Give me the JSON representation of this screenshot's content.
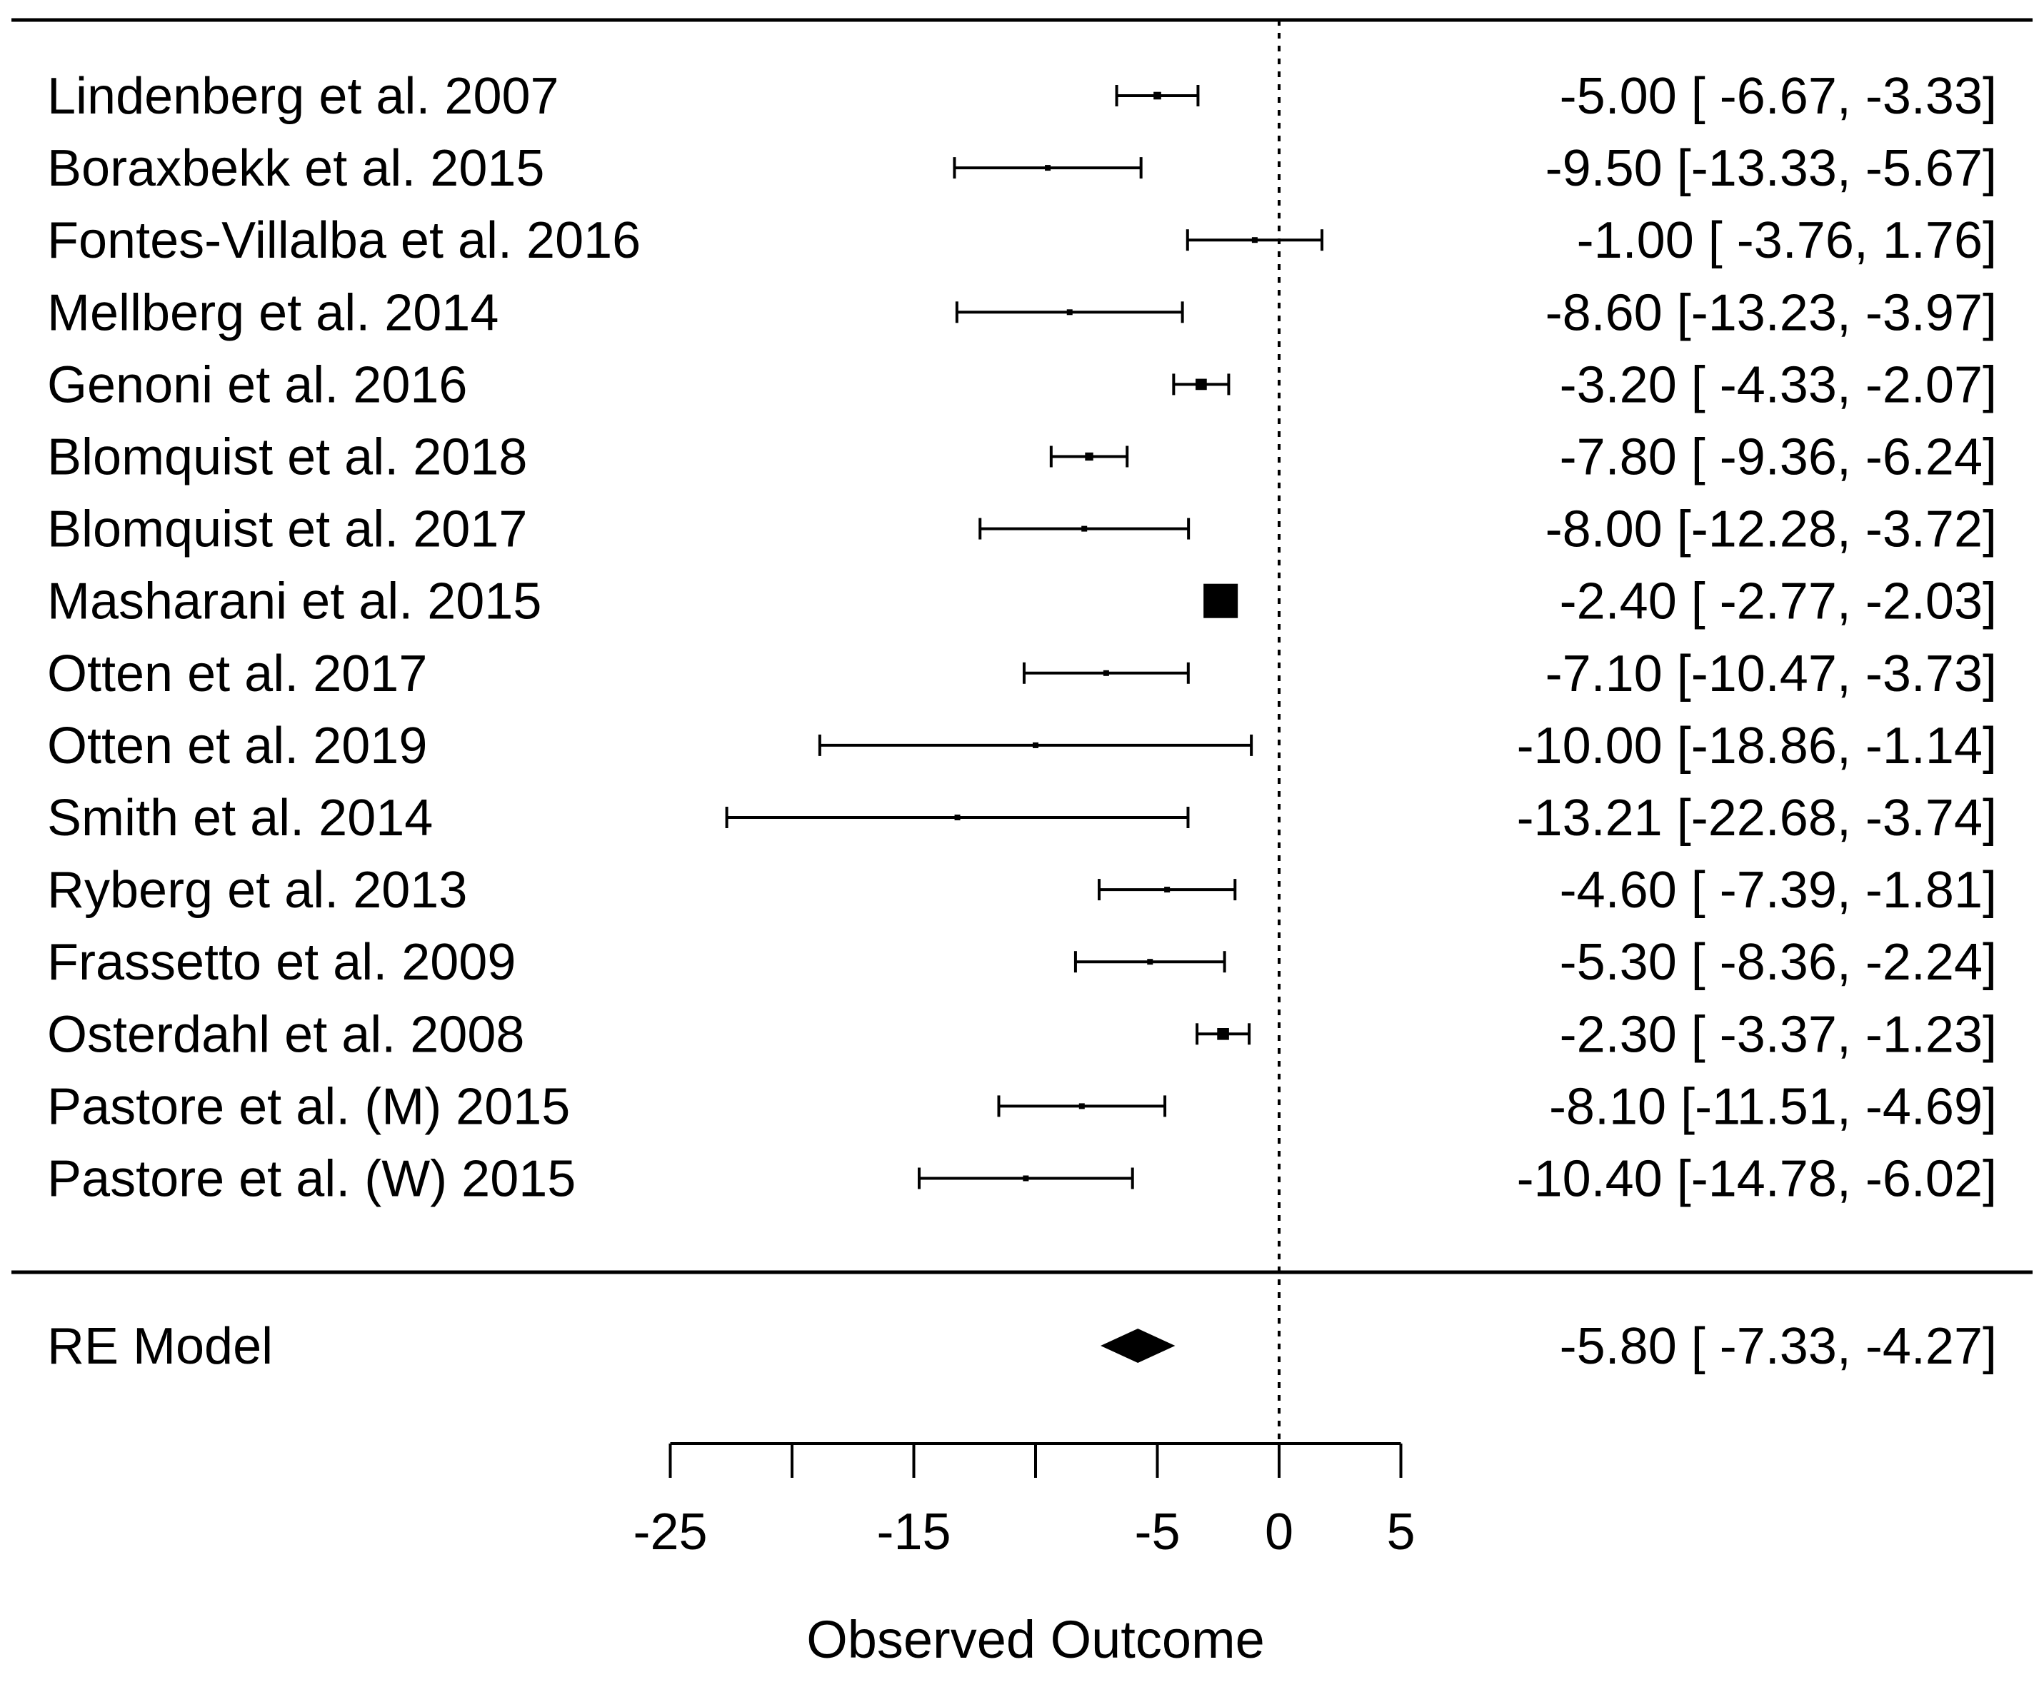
{
  "chart_data": {
    "type": "forest",
    "xlabel": "Observed Outcome",
    "xlim": [
      -25,
      5
    ],
    "ticks": [
      -25,
      -20,
      -15,
      -10,
      -5,
      0,
      5
    ],
    "tick_labels": [
      "-25",
      "",
      "-15",
      "",
      "-5",
      "0",
      "5"
    ],
    "reference_line": 0,
    "studies": [
      {
        "label": "Lindenberg et al. 2007",
        "estimate": -5.0,
        "lower": -6.67,
        "upper": -3.33,
        "ci_text": "-5.00 [ -6.67, -3.33]"
      },
      {
        "label": "Boraxbekk et al.  2015",
        "estimate": -9.5,
        "lower": -13.33,
        "upper": -5.67,
        "ci_text": "-9.50 [-13.33, -5.67]"
      },
      {
        "label": "Fontes-Villalba et al. 2016",
        "estimate": -1.0,
        "lower": -3.76,
        "upper": 1.76,
        "ci_text": "-1.00 [ -3.76,  1.76]"
      },
      {
        "label": "Mellberg et al. 2014",
        "estimate": -8.6,
        "lower": -13.23,
        "upper": -3.97,
        "ci_text": "-8.60 [-13.23, -3.97]"
      },
      {
        "label": "Genoni et al. 2016",
        "estimate": -3.2,
        "lower": -4.33,
        "upper": -2.07,
        "ci_text": "-3.20 [ -4.33, -2.07]"
      },
      {
        "label": "Blomquist et al. 2018",
        "estimate": -7.8,
        "lower": -9.36,
        "upper": -6.24,
        "ci_text": "-7.80 [ -9.36, -6.24]"
      },
      {
        "label": "Blomquist et al. 2017",
        "estimate": -8.0,
        "lower": -12.28,
        "upper": -3.72,
        "ci_text": "-8.00 [-12.28, -3.72]"
      },
      {
        "label": "Masharani et al. 2015",
        "estimate": -2.4,
        "lower": -2.77,
        "upper": -2.03,
        "ci_text": "-2.40 [ -2.77, -2.03]"
      },
      {
        "label": "Otten et al. 2017",
        "estimate": -7.1,
        "lower": -10.47,
        "upper": -3.73,
        "ci_text": "-7.10 [-10.47, -3.73]"
      },
      {
        "label": "Otten et al. 2019",
        "estimate": -10.0,
        "lower": -18.86,
        "upper": -1.14,
        "ci_text": "-10.00 [-18.86, -1.14]"
      },
      {
        "label": "Smith et al. 2014",
        "estimate": -13.21,
        "lower": -22.68,
        "upper": -3.74,
        "ci_text": "-13.21 [-22.68, -3.74]"
      },
      {
        "label": "Ryberg et al. 2013",
        "estimate": -4.6,
        "lower": -7.39,
        "upper": -1.81,
        "ci_text": "-4.60 [ -7.39, -1.81]"
      },
      {
        "label": "Frassetto et al. 2009",
        "estimate": -5.3,
        "lower": -8.36,
        "upper": -2.24,
        "ci_text": "-5.30 [ -8.36, -2.24]"
      },
      {
        "label": "Osterdahl et al. 2008",
        "estimate": -2.3,
        "lower": -3.37,
        "upper": -1.23,
        "ci_text": "-2.30 [ -3.37, -1.23]"
      },
      {
        "label": "Pastore et al. (M) 2015",
        "estimate": -8.1,
        "lower": -11.51,
        "upper": -4.69,
        "ci_text": "-8.10 [-11.51, -4.69]"
      },
      {
        "label": "Pastore et al. (W) 2015",
        "estimate": -10.4,
        "lower": -14.78,
        "upper": -6.02,
        "ci_text": "-10.40 [-14.78, -6.02]"
      }
    ],
    "summary": {
      "label": "RE Model",
      "estimate": -5.8,
      "lower": -7.33,
      "upper": -4.27,
      "ci_text": "-5.80 [ -7.33, -4.27]"
    }
  }
}
